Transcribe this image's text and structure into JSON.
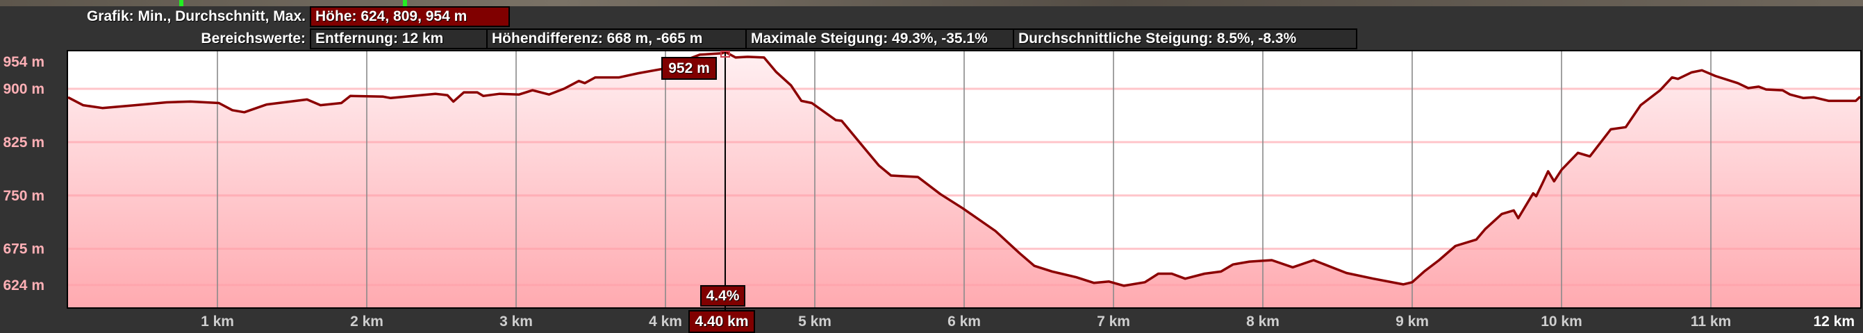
{
  "header": {
    "graph_label": "Grafik: Min., Durchschnitt, Max.",
    "elevation_stats": "Höhe: 624, 809, 954 m",
    "range_label": "Bereichswerte:",
    "distance": "Entfernung: 12 km",
    "elevation_difference": "Höhendifferenz: 668 m, -665 m",
    "max_grade": "Maximale Steigung: 49.3%, -35.1%",
    "avg_grade": "Durchschnittliche Steigung: 8.5%, -8.3%"
  },
  "cursor": {
    "distance_km": 4.4,
    "distance_label": "4.40 km",
    "elevation_label": "952 m",
    "grade_label": "4.4%"
  },
  "colors": {
    "line": "#8b0000",
    "fill_top": "#fff0f2",
    "fill_bottom": "#ffaab0",
    "accent_box": "#800000",
    "y_tick_text": "#ffb0b6"
  },
  "chart_data": {
    "type": "area",
    "xlabel": "",
    "ylabel": "",
    "xlim": [
      0,
      12
    ],
    "ylim": [
      593,
      954
    ],
    "grid": true,
    "x_ticks": [
      1,
      2,
      3,
      4,
      5,
      6,
      7,
      8,
      9,
      10,
      11,
      12
    ],
    "x_tick_labels": [
      "1 km",
      "2 km",
      "3 km",
      "4 km",
      "5 km",
      "6 km",
      "7 km",
      "8 km",
      "9 km",
      "10 km",
      "11 km",
      "12 km"
    ],
    "y_ticks": [
      954,
      900,
      825,
      750,
      675,
      624
    ],
    "y_tick_labels": [
      "954 m",
      "900 m",
      "825 m",
      "750 m",
      "675 m",
      "624 m"
    ],
    "x": [
      0,
      0.1,
      0.23,
      0.45,
      0.66,
      0.82,
      1.01,
      1.1,
      1.18,
      1.33,
      1.6,
      1.69,
      1.83,
      1.89,
      2.11,
      2.16,
      2.46,
      2.54,
      2.58,
      2.65,
      2.74,
      2.78,
      2.89,
      3.02,
      3.11,
      3.22,
      3.32,
      3.42,
      3.46,
      3.53,
      3.69,
      3.82,
      3.98,
      4.23,
      4.38,
      4.4,
      4.47,
      4.55,
      4.66,
      4.74,
      4.84,
      4.91,
      4.98,
      5.14,
      5.18,
      5.33,
      5.43,
      5.51,
      5.69,
      5.84,
      5.99,
      6.21,
      6.37,
      6.47,
      6.59,
      6.75,
      6.87,
      6.97,
      7.07,
      7.21,
      7.3,
      7.39,
      7.48,
      7.61,
      7.72,
      7.8,
      7.91,
      8.06,
      8.2,
      8.34,
      8.56,
      8.74,
      8.94,
      9.0,
      9.08,
      9.18,
      9.29,
      9.43,
      9.49,
      9.6,
      9.68,
      9.71,
      9.81,
      9.83,
      9.87,
      9.91,
      9.95,
      10.0,
      10.11,
      10.19,
      10.33,
      10.43,
      10.53,
      10.66,
      10.74,
      10.78,
      10.87,
      10.94,
      11.03,
      11.18,
      11.25,
      11.32,
      11.37,
      11.48,
      11.53,
      11.62,
      11.69,
      11.79,
      11.97,
      12.0
    ],
    "y": [
      888,
      877,
      873,
      877,
      881,
      882,
      880,
      870,
      867,
      878,
      885,
      877,
      880,
      890,
      889,
      887,
      893,
      891,
      882,
      895,
      895,
      890,
      893,
      892,
      898,
      892,
      900,
      911,
      908,
      916,
      916,
      922,
      928,
      948,
      950,
      952,
      944,
      945,
      944,
      924,
      905,
      883,
      880,
      856,
      855,
      817,
      792,
      778,
      776,
      752,
      732,
      700,
      669,
      651,
      643,
      635,
      627,
      629,
      623,
      628,
      640,
      640,
      633,
      640,
      643,
      653,
      657,
      659,
      649,
      659,
      641,
      633,
      625,
      628,
      643,
      659,
      679,
      688,
      703,
      724,
      729,
      718,
      753,
      749,
      766,
      784,
      770,
      786,
      810,
      805,
      843,
      846,
      877,
      898,
      916,
      914,
      923,
      926,
      918,
      908,
      901,
      903,
      899,
      898,
      892,
      887,
      888,
      883,
      883,
      889
    ]
  }
}
